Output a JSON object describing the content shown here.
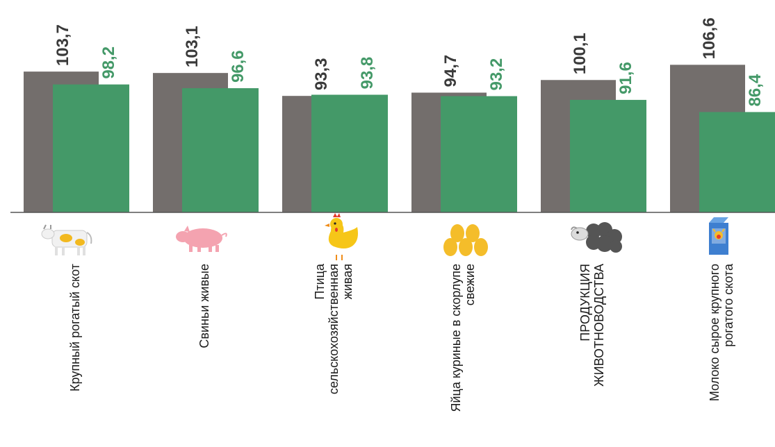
{
  "chart_data": {
    "type": "bar",
    "categories": [
      [
        "Крупный рогатый скот"
      ],
      [
        "Свиньи живые"
      ],
      [
        "Птица",
        "сельскохозяйственная",
        "живая"
      ],
      [
        "Яйца куриные в скорлупе",
        "свежие"
      ],
      [
        "ПРОДУКЦИЯ",
        "ЖИВОТНОВОДСТВА"
      ],
      [
        "Молоко сырое крупного",
        "рогатого скота"
      ]
    ],
    "series": [
      {
        "values": [
          103.7,
          103.1,
          93.3,
          94.7,
          100.1,
          106.6
        ],
        "labels": [
          "103,7",
          "103,1",
          "93,3",
          "94,7",
          "100,1",
          "106,6"
        ]
      },
      {
        "values": [
          98.2,
          96.6,
          93.8,
          93.2,
          91.6,
          86.4
        ],
        "labels": [
          "98,2",
          "96,6",
          "93,8",
          "93,2",
          "91,6",
          "86,4"
        ]
      }
    ],
    "icons": [
      "cow-icon",
      "pig-icon",
      "chicken-icon",
      "eggs-icon",
      "sheep-icon",
      "milk-carton-icon"
    ],
    "colors": {
      "series1": "#736e6c",
      "series2": "#449968",
      "label1": "#3a3a3a",
      "label2": "#449968"
    }
  }
}
